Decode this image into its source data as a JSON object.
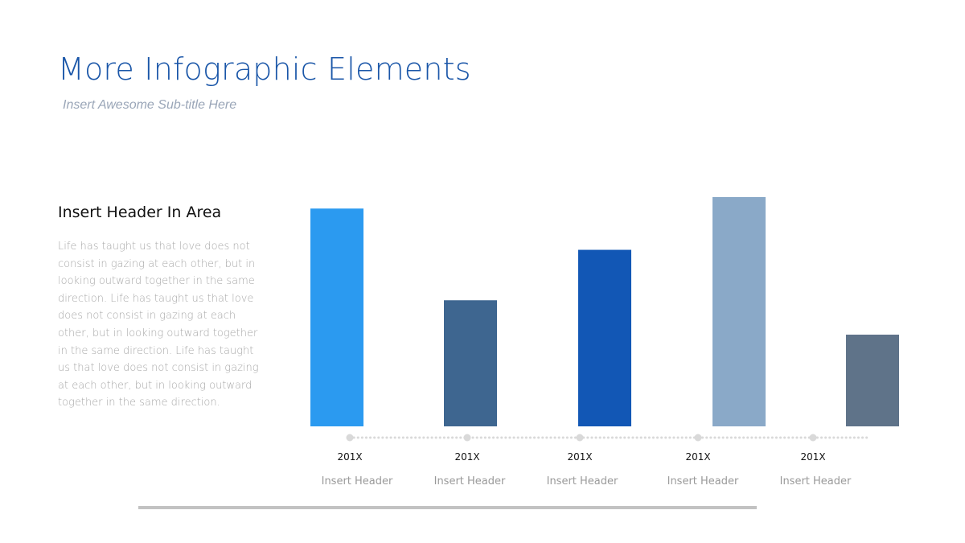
{
  "page": {
    "title": "More Infographic Elements",
    "subtitle": "Insert Awesome Sub-title Here"
  },
  "area": {
    "header": "Insert Header In Area",
    "body": "Life has taught us that love does not consist in gazing at each other, but in looking outward together in the same direction. Life has taught us that love does not consist in gazing at each other, but in looking outward together in the same direction. Life has taught us that love does not consist in gazing at each other, but in looking outward together in the same direction."
  },
  "chart_data": {
    "type": "bar",
    "categories": [
      "201X",
      "201X",
      "201X",
      "201X",
      "201X"
    ],
    "category_captions": [
      "Insert  Header",
      "Insert  Header",
      "Insert  Header",
      "Insert  Header",
      "Insert  Header"
    ],
    "values": [
      0.95,
      0.55,
      0.77,
      1.0,
      0.4
    ],
    "bar_colors": [
      "#2b9af0",
      "#3e6690",
      "#1257b5",
      "#8aa9c8",
      "#5f7389"
    ],
    "ylim": [
      0,
      1
    ],
    "grid": false,
    "legend": "none",
    "timeline_color": "#d9d9d9"
  }
}
